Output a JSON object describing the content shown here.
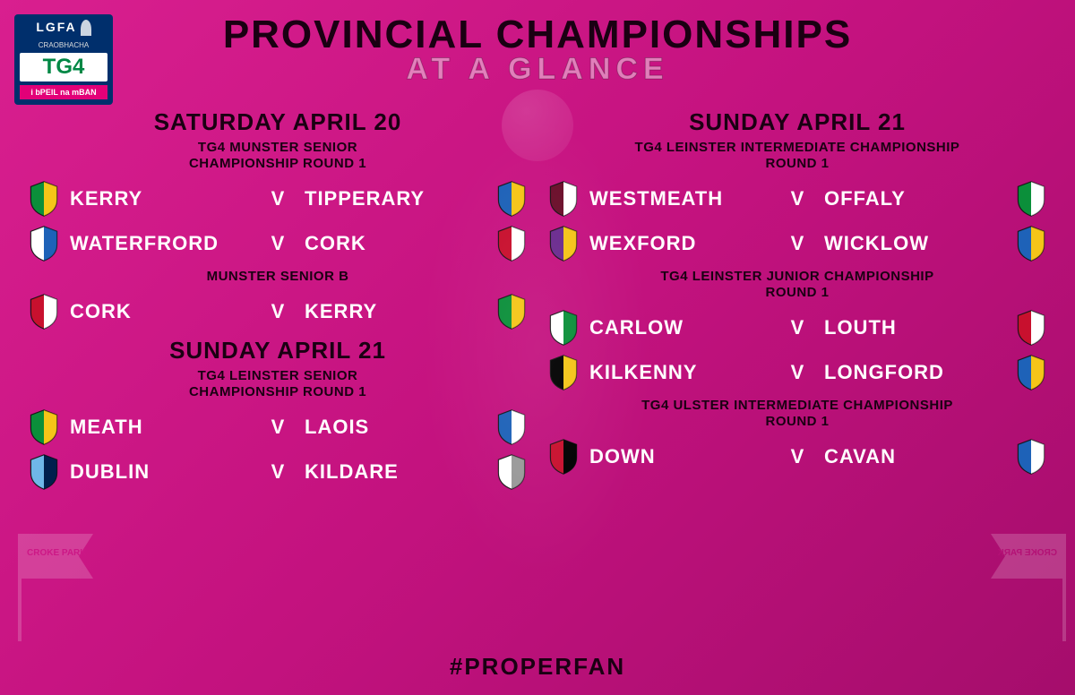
{
  "title_line1": "PROVINCIAL CHAMPIONSHIPS",
  "title_line2": "AT A GLANCE",
  "hashtag": "#PROPERFAN",
  "sponsor": {
    "top": "LGFA",
    "mid": "CRAOBHACHA",
    "tg4": "TG4",
    "bot": "i bPEIL na mBAN"
  },
  "flag_text": "CROKE PARK",
  "vs_label": "V",
  "left_sections": [
    {
      "day": "SATURDAY APRIL 20",
      "comps": [
        {
          "heading": "TG4 MUNSTER SENIOR\nCHAMPIONSHIP ROUND 1",
          "fixtures": [
            {
              "home": "KERRY",
              "away": "TIPPERARY",
              "home_colors": [
                "#0b8f3a",
                "#f5c518"
              ],
              "away_colors": [
                "#1e62b8",
                "#f5c518"
              ]
            },
            {
              "home": "WATERFRORD",
              "away": "CORK",
              "home_colors": [
                "#ffffff",
                "#1e62b8"
              ],
              "away_colors": [
                "#c8102e",
                "#ffffff"
              ]
            }
          ]
        },
        {
          "heading": "MUNSTER SENIOR B",
          "fixtures": [
            {
              "home": "CORK",
              "away": "KERRY",
              "home_colors": [
                "#c8102e",
                "#ffffff"
              ],
              "away_colors": [
                "#0b8f3a",
                "#f5c518"
              ]
            }
          ]
        }
      ]
    },
    {
      "day": "SUNDAY APRIL 21",
      "comps": [
        {
          "heading": "TG4 LEINSTER SENIOR\nCHAMPIONSHIP ROUND 1",
          "fixtures": [
            {
              "home": "MEATH",
              "away": "LAOIS",
              "home_colors": [
                "#0b8f3a",
                "#f5c518"
              ],
              "away_colors": [
                "#1e62b8",
                "#ffffff"
              ]
            },
            {
              "home": "DUBLIN",
              "away": "KILDARE",
              "home_colors": [
                "#6fb7e8",
                "#001f4d"
              ],
              "away_colors": [
                "#ffffff",
                "#999999"
              ]
            }
          ]
        }
      ]
    }
  ],
  "right_sections": [
    {
      "day": "SUNDAY APRIL 21",
      "comps": [
        {
          "heading": "TG4 LEINSTER INTERMEDIATE CHAMPIONSHIP\nROUND 1",
          "fixtures": [
            {
              "home": "WESTMEATH",
              "away": "OFFALY",
              "home_colors": [
                "#6b0f2b",
                "#ffffff"
              ],
              "away_colors": [
                "#0b8f3a",
                "#ffffff"
              ]
            },
            {
              "home": "WEXFORD",
              "away": "WICKLOW",
              "home_colors": [
                "#6b2b8f",
                "#f5c518"
              ],
              "away_colors": [
                "#1e62b8",
                "#f5c518"
              ]
            }
          ]
        },
        {
          "heading": "TG4 LEINSTER JUNIOR CHAMPIONSHIP\nROUND 1",
          "fixtures": [
            {
              "home": "CARLOW",
              "away": "LOUTH",
              "home_colors": [
                "#ffffff",
                "#0b8f3a"
              ],
              "away_colors": [
                "#c8102e",
                "#ffffff"
              ]
            },
            {
              "home": "KILKENNY",
              "away": "LONGFORD",
              "home_colors": [
                "#000000",
                "#f5c518"
              ],
              "away_colors": [
                "#1e62b8",
                "#f5c518"
              ]
            }
          ]
        },
        {
          "heading": "TG4 ULSTER INTERMEDIATE CHAMPIONSHIP\nROUND 1",
          "fixtures": [
            {
              "home": "DOWN",
              "away": "CAVAN",
              "home_colors": [
                "#c8102e",
                "#000000"
              ],
              "away_colors": [
                "#1e62b8",
                "#ffffff"
              ]
            }
          ]
        }
      ]
    }
  ]
}
